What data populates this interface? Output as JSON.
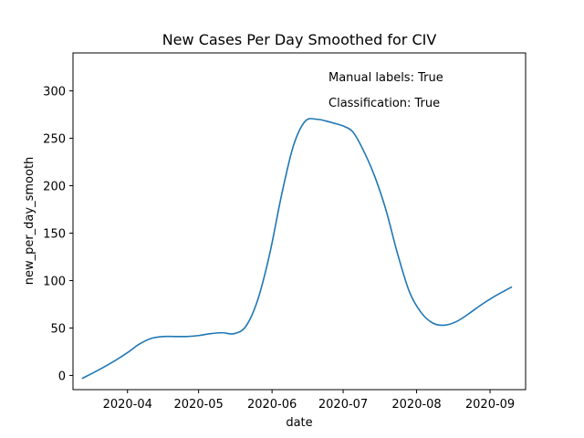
{
  "chart_data": {
    "type": "line",
    "title": "New Cases Per Day Smoothed for CIV",
    "xlabel": "date",
    "ylabel": "new_per_day_smooth",
    "x_ticks": [
      "2020-04",
      "2020-05",
      "2020-06",
      "2020-07",
      "2020-08",
      "2020-09"
    ],
    "y_ticks": [
      0,
      50,
      100,
      150,
      200,
      250,
      300
    ],
    "xlim": [
      "2020-03-09",
      "2020-09-16"
    ],
    "ylim": [
      -15,
      340
    ],
    "grid": false,
    "annotations": [
      "Manual labels: True",
      "Classification: True"
    ],
    "line_color": "#1f77b4",
    "series": [
      {
        "x": [
          "2020-03-13",
          "2020-03-20",
          "2020-03-27",
          "2020-04-01",
          "2020-04-06",
          "2020-04-11",
          "2020-04-16",
          "2020-04-21",
          "2020-04-26",
          "2020-05-01",
          "2020-05-06",
          "2020-05-11",
          "2020-05-16",
          "2020-05-21",
          "2020-05-26",
          "2020-05-31",
          "2020-06-05",
          "2020-06-10",
          "2020-06-15",
          "2020-06-20",
          "2020-06-24",
          "2020-06-27",
          "2020-07-01",
          "2020-07-05",
          "2020-07-09",
          "2020-07-14",
          "2020-07-19",
          "2020-07-24",
          "2020-07-29",
          "2020-08-03",
          "2020-08-08",
          "2020-08-13",
          "2020-08-18",
          "2020-08-23",
          "2020-08-28",
          "2020-09-02",
          "2020-09-07",
          "2020-09-10"
        ],
        "y": [
          -3,
          6,
          16,
          24,
          33,
          39,
          41,
          41,
          41,
          42,
          44,
          45,
          44,
          52,
          80,
          128,
          190,
          242,
          268,
          270,
          268,
          266,
          263,
          257,
          240,
          212,
          175,
          128,
          88,
          66,
          55,
          53,
          57,
          65,
          74,
          82,
          89,
          93
        ]
      }
    ]
  }
}
